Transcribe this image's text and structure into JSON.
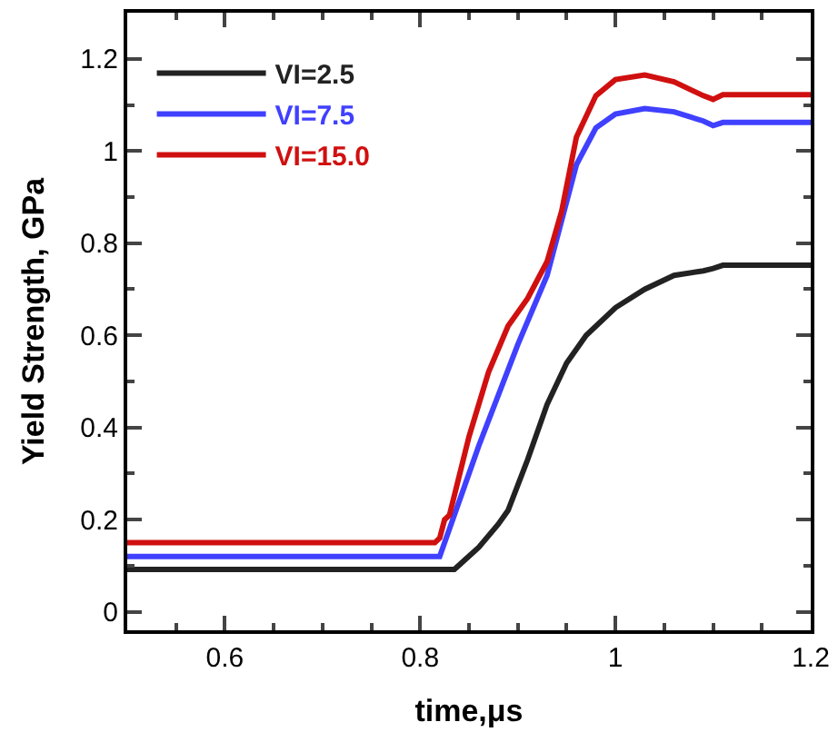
{
  "chart_data": {
    "type": "line",
    "xlabel": "time,μs",
    "ylabel": "Yield Strength, GPa",
    "xlim": [
      0.5,
      1.2
    ],
    "xticks": [
      0.6,
      0.8,
      1,
      1.2
    ],
    "ylim": [
      -0.04,
      1.3
    ],
    "yticks": [
      0,
      0.2,
      0.4,
      0.6,
      0.8,
      1,
      1.2
    ],
    "grid": false,
    "legend": "top left",
    "marker": "none",
    "line_style": "solid",
    "series": [
      {
        "name": "VI=2.5",
        "color": "#222222",
        "x": [
          0.5,
          0.835,
          0.86,
          0.88,
          0.89,
          0.91,
          0.93,
          0.95,
          0.97,
          1.0,
          1.03,
          1.06,
          1.09,
          1.1,
          1.11,
          1.2
        ],
        "values": [
          0.092,
          0.092,
          0.14,
          0.19,
          0.22,
          0.33,
          0.45,
          0.54,
          0.6,
          0.66,
          0.7,
          0.73,
          0.74,
          0.745,
          0.752,
          0.752
        ]
      },
      {
        "name": "VI=7.5",
        "color": "#4040ff",
        "x": [
          0.5,
          0.82,
          0.86,
          0.9,
          0.93,
          0.945,
          0.96,
          0.98,
          1.0,
          1.03,
          1.06,
          1.09,
          1.1,
          1.11,
          1.2
        ],
        "values": [
          0.12,
          0.12,
          0.36,
          0.58,
          0.73,
          0.85,
          0.97,
          1.05,
          1.08,
          1.092,
          1.085,
          1.065,
          1.055,
          1.062,
          1.062
        ]
      },
      {
        "name": "VI=15.0",
        "color": "#d01010",
        "x": [
          0.5,
          0.815,
          0.82,
          0.825,
          0.83,
          0.85,
          0.87,
          0.89,
          0.91,
          0.93,
          0.945,
          0.96,
          0.98,
          1.0,
          1.03,
          1.06,
          1.09,
          1.1,
          1.11,
          1.2
        ],
        "values": [
          0.15,
          0.15,
          0.16,
          0.2,
          0.21,
          0.38,
          0.52,
          0.62,
          0.68,
          0.76,
          0.87,
          1.03,
          1.12,
          1.155,
          1.165,
          1.15,
          1.12,
          1.112,
          1.122,
          1.122
        ]
      }
    ]
  }
}
